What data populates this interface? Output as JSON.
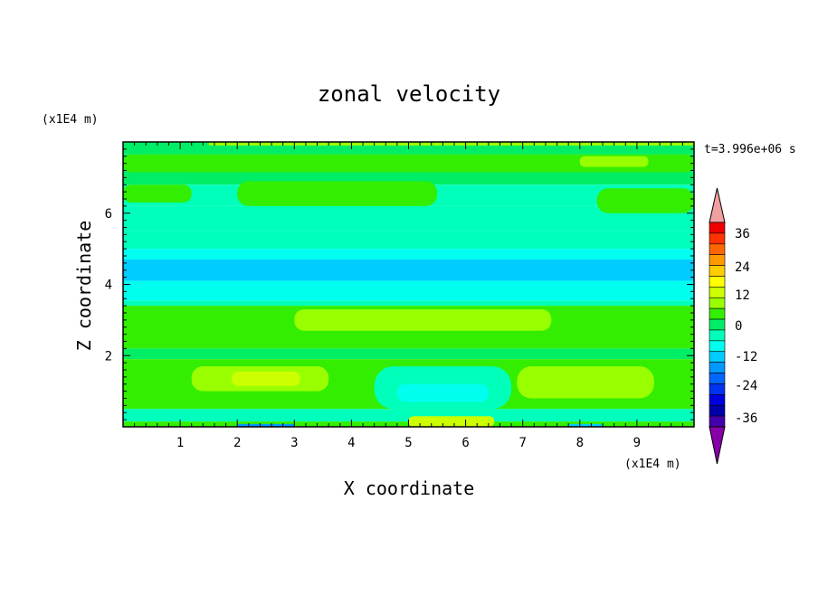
{
  "chart_data": {
    "type": "heatmap",
    "title": "zonal velocity",
    "xlabel": "X coordinate",
    "ylabel": "Z coordinate",
    "x_unit": "(x1E4 m)",
    "y_unit": "(x1E4 m)",
    "time_label": "t=3.996e+06 s",
    "xlim": [
      0,
      10
    ],
    "ylim": [
      0,
      8
    ],
    "x_ticks": [
      1,
      2,
      3,
      4,
      5,
      6,
      7,
      8,
      9
    ],
    "y_ticks": [
      2,
      4,
      6
    ],
    "colorbar": {
      "ticks": [
        "36",
        "24",
        "12",
        "0",
        "-12",
        "-24",
        "-36"
      ],
      "levels": [
        {
          "color": "#ee0000"
        },
        {
          "color": "#ff3300"
        },
        {
          "color": "#ff6600"
        },
        {
          "color": "#ff9900"
        },
        {
          "color": "#ffcc00"
        },
        {
          "color": "#ffff00"
        },
        {
          "color": "#ccff00"
        },
        {
          "color": "#99ff00"
        },
        {
          "color": "#33ee00"
        },
        {
          "color": "#00ee66"
        },
        {
          "color": "#00ffbb"
        },
        {
          "color": "#00ffee"
        },
        {
          "color": "#00ccff"
        },
        {
          "color": "#0099ff"
        },
        {
          "color": "#0066ff"
        },
        {
          "color": "#0033ee"
        },
        {
          "color": "#0000dd"
        },
        {
          "color": "#0000aa"
        },
        {
          "color": "#4400aa"
        }
      ],
      "over_color": "#f0a0a0",
      "under_color": "#8800aa"
    },
    "bands": [
      {
        "z0": 7.65,
        "z1": 8.0,
        "u": 0
      },
      {
        "z0": 6.8,
        "z1": 7.65,
        "u": 0
      },
      {
        "z0": 6.2,
        "z1": 6.8,
        "u": -3
      },
      {
        "z0": 5.5,
        "z1": 6.2,
        "u": -3
      },
      {
        "z0": 5.0,
        "z1": 5.5,
        "u": -5
      },
      {
        "z0": 4.7,
        "z1": 5.0,
        "u": -10
      },
      {
        "z0": 4.1,
        "z1": 4.7,
        "u": -16
      },
      {
        "z0": 3.55,
        "z1": 4.1,
        "u": -11
      },
      {
        "z0": 3.4,
        "z1": 3.55,
        "u": -5
      },
      {
        "z0": 2.2,
        "z1": 3.4,
        "u": 6
      },
      {
        "z0": 1.9,
        "z1": 2.2,
        "u": 0
      },
      {
        "z0": 0.5,
        "z1": 1.9,
        "u": 3
      },
      {
        "z0": 0.15,
        "z1": 0.5,
        "u": -4
      },
      {
        "z0": 0.0,
        "z1": 0.15,
        "u": 2
      }
    ],
    "patches": [
      {
        "x0": 0.0,
        "x1": 10.0,
        "z0": 7.15,
        "z1": 7.65,
        "u": 3
      },
      {
        "x0": 0.0,
        "x1": 1.2,
        "z0": 6.3,
        "z1": 6.8,
        "u": 3
      },
      {
        "x0": 2.0,
        "x1": 5.5,
        "z0": 6.2,
        "z1": 6.9,
        "u": 2
      },
      {
        "x0": 8.3,
        "x1": 10.0,
        "z0": 6.0,
        "z1": 6.7,
        "u": 2
      },
      {
        "x0": 8.0,
        "x1": 9.2,
        "z0": 7.3,
        "z1": 7.6,
        "u": 7
      },
      {
        "x0": 1.5,
        "x1": 10.0,
        "z0": 7.9,
        "z1": 8.0,
        "u": 8
      },
      {
        "x0": 3.0,
        "x1": 7.5,
        "z0": 2.7,
        "z1": 3.3,
        "u": 9
      },
      {
        "x0": 1.2,
        "x1": 3.6,
        "z0": 1.0,
        "z1": 1.7,
        "u": 10
      },
      {
        "x0": 1.9,
        "x1": 3.1,
        "z0": 1.15,
        "z1": 1.55,
        "u": 14
      },
      {
        "x0": 6.9,
        "x1": 9.3,
        "z0": 0.8,
        "z1": 1.7,
        "u": 8
      },
      {
        "x0": 4.4,
        "x1": 6.8,
        "z0": 0.5,
        "z1": 1.7,
        "u": -5
      },
      {
        "x0": 4.8,
        "x1": 6.4,
        "z0": 0.7,
        "z1": 1.2,
        "u": -10
      },
      {
        "x0": 5.0,
        "x1": 6.5,
        "z0": 0.0,
        "z1": 0.3,
        "u": 12
      },
      {
        "x0": 2.0,
        "x1": 3.0,
        "z0": 0.0,
        "z1": 0.08,
        "u": -18
      },
      {
        "x0": 7.8,
        "x1": 8.4,
        "z0": 0.0,
        "z1": 0.08,
        "u": -16
      }
    ]
  }
}
